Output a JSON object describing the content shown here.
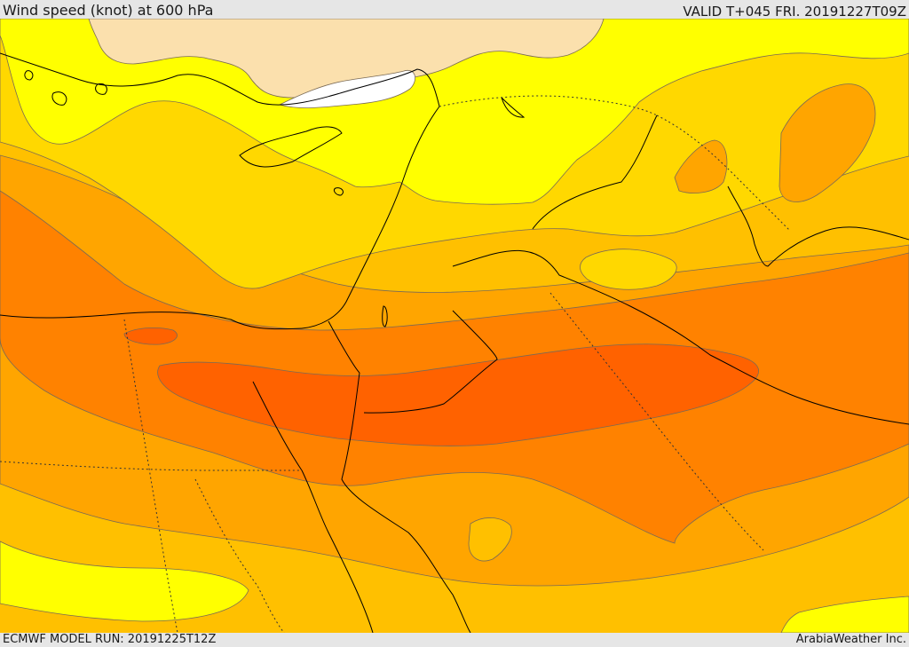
{
  "header": {
    "title": "Wind speed (knot) at 600 hPa",
    "valid": "VALID T+045 FRI. 20191227T09Z"
  },
  "footer": {
    "model_run": "ECMWF MODEL RUN: 20191225T12Z",
    "credit": "ArabiaWeather Inc."
  },
  "map": {
    "variable": "wind speed",
    "units": "knot",
    "level_hpa": 600,
    "fill_colors": {
      "band_1": "#ffffff",
      "band_2": "#fbe0ad",
      "band_3": "#ffff00",
      "band_4": "#ffd800",
      "band_5": "#ffc000",
      "band_6": "#ffa500",
      "band_7": "#ff8200",
      "band_8": "#ff6200"
    },
    "contour_color": "#7a6a55",
    "coastline_color": "#000000",
    "border_style": "dotted"
  }
}
